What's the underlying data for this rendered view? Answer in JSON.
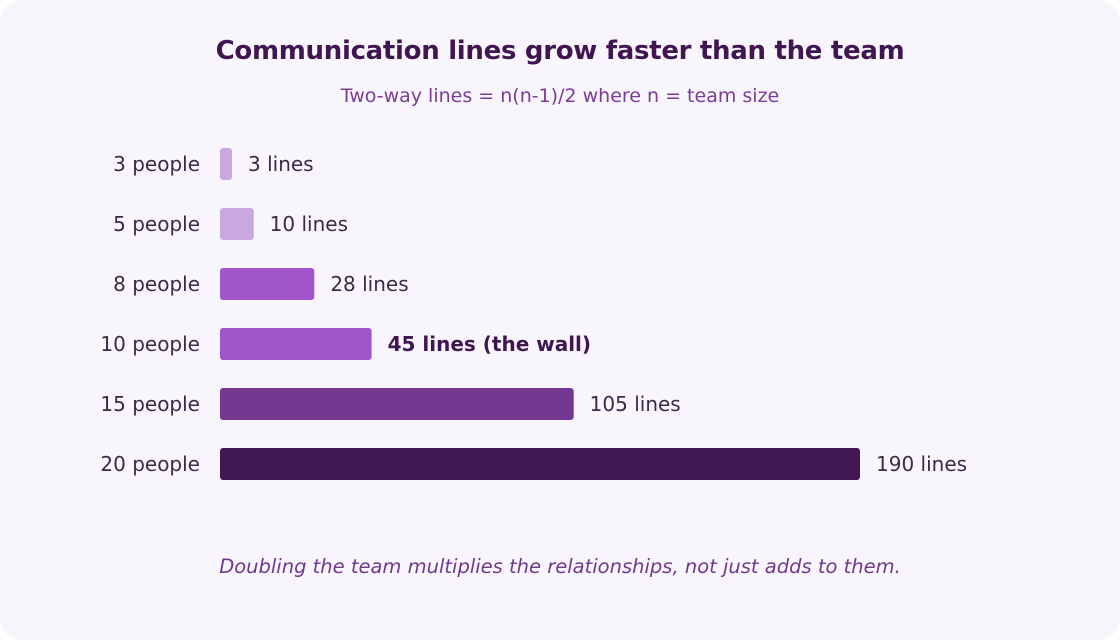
{
  "chart_data": {
    "type": "bar",
    "orientation": "horizontal",
    "title": "Communication lines grow faster than the team",
    "subtitle": "Two-way lines = n(n-1)/2 where n = team size",
    "xlabel": "",
    "ylabel": "",
    "xlim": [
      0,
      190
    ],
    "grid": false,
    "legend": "none",
    "categories": [
      "3 people",
      "5 people",
      "8 people",
      "10 people",
      "15 people",
      "20 people"
    ],
    "values": [
      3,
      10,
      28,
      45,
      105,
      190
    ],
    "data_labels": [
      "3 lines",
      "10 lines",
      "28 lines",
      "45 lines (the wall)",
      "105 lines",
      "190 lines"
    ],
    "emphasized_labels": [
      false,
      false,
      false,
      true,
      false,
      false
    ],
    "bar_colors": [
      "#c9a8e0",
      "#c9a8e0",
      "#a155cb",
      "#a155cb",
      "#753891",
      "#411754"
    ],
    "annotation": "Doubling the team multiplies the relationships, not just adds to them."
  },
  "colors": {
    "background": "#f9f5fc",
    "title": "#3f1650",
    "subtitle": "#7a3d96",
    "category_label": "#3d2a48",
    "value_label": "#3d2a48",
    "emphasized_label": "#3f1650"
  }
}
